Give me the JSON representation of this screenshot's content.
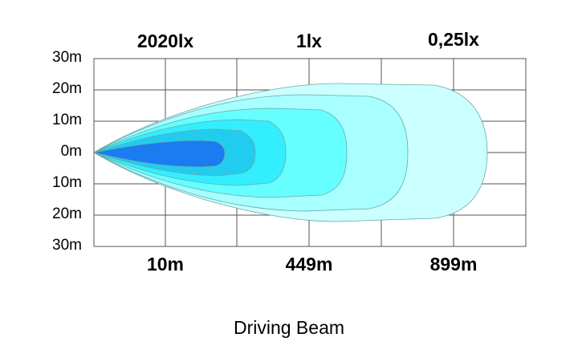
{
  "axis": {
    "y_labels": [
      "30m",
      "20m",
      "10m",
      "0m",
      "10m",
      "20m",
      "30m"
    ]
  },
  "top_labels": [
    "2020lx",
    "1lx",
    "0,25lx"
  ],
  "bottom_labels": [
    "10m",
    "449m",
    "899m"
  ],
  "title": "Driving Beam"
}
